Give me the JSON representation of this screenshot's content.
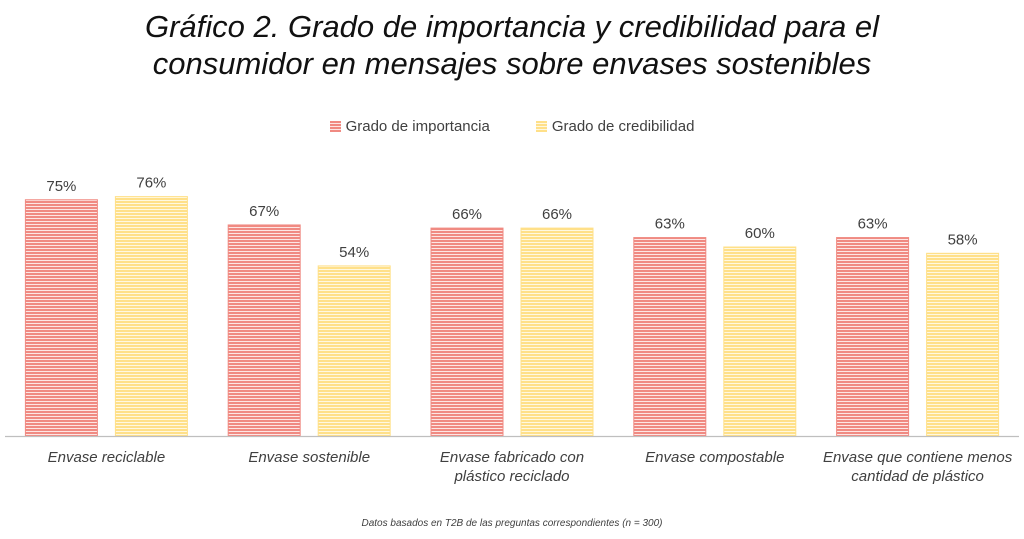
{
  "title_lines": [
    "Gráfico 2. Grado de importancia y credibilidad para el",
    "consumidor en mensajes sobre envases sostenibles"
  ],
  "footnote": "Datos basados en T2B de las preguntas correspondientes (n = 300)",
  "colors": {
    "importancia": "#f08a82",
    "credibilidad": "#ffe089",
    "axis": "#bfbfbf"
  },
  "chart_data": {
    "type": "bar",
    "categories": [
      [
        "Envase reciclable"
      ],
      [
        "Envase sostenible"
      ],
      [
        "Envase fabricado con",
        "plástico reciclado"
      ],
      [
        "Envase compostable"
      ],
      [
        "Envase que contiene menos",
        "cantidad de plástico"
      ]
    ],
    "series": [
      {
        "name": "Grado de importancia",
        "values": [
          75,
          67,
          66,
          63,
          63
        ]
      },
      {
        "name": "Grado de credibilidad",
        "values": [
          76,
          54,
          66,
          60,
          58
        ]
      }
    ],
    "value_format": "percent",
    "ylim": [
      0,
      80
    ],
    "grid": false,
    "legend_position": "top"
  }
}
